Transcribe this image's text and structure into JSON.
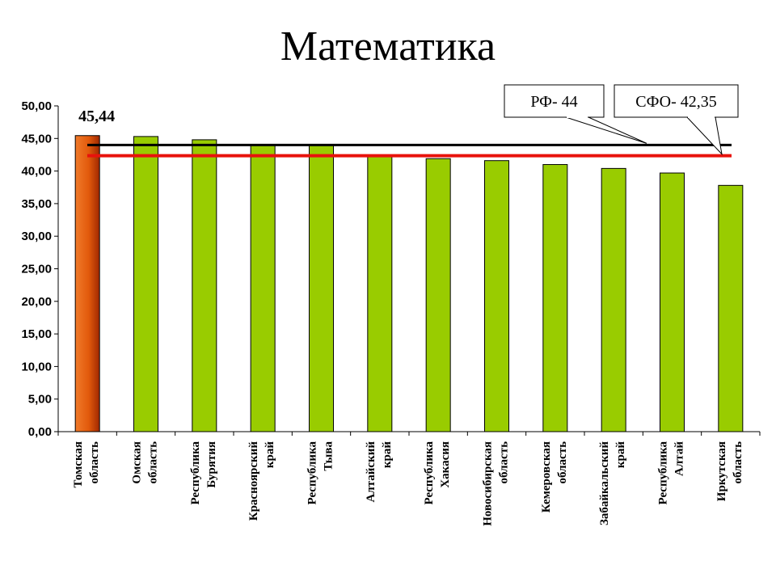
{
  "page": {
    "title": "Математика"
  },
  "chart_data": {
    "type": "bar",
    "title": "Математика",
    "categories": [
      [
        "Томская",
        "область"
      ],
      [
        "Омская",
        "область"
      ],
      [
        "Республика",
        "Бурятия"
      ],
      [
        "Красноярский",
        "край"
      ],
      [
        "Республика",
        "Тыва"
      ],
      [
        "Алтайский",
        "край"
      ],
      [
        "Республика",
        "Хакасия"
      ],
      [
        "Новосибирская",
        "область"
      ],
      [
        "Кемеровская",
        "область"
      ],
      [
        "Забайкальский",
        "край"
      ],
      [
        "Республика",
        "Алтай"
      ],
      [
        "Иркутская",
        "область"
      ]
    ],
    "values": [
      45.44,
      45.3,
      44.8,
      44.1,
      44.1,
      42.3,
      41.9,
      41.6,
      41.0,
      40.4,
      39.7,
      37.8
    ],
    "highlight_index": 0,
    "highlight_label": "45,44",
    "ylim": [
      0,
      50
    ],
    "y_ticks": [
      "0,00",
      "5,00",
      "10,00",
      "15,00",
      "20,00",
      "25,00",
      "30,00",
      "35,00",
      "40,00",
      "45,00",
      "50,00"
    ],
    "y_tick_values": [
      0,
      5,
      10,
      15,
      20,
      25,
      30,
      35,
      40,
      45,
      50
    ],
    "grid": false,
    "reference_lines": [
      {
        "label": "РФ- 44",
        "value": 44,
        "color": "#000000"
      },
      {
        "label": "СФО- 42,35",
        "value": 42.35,
        "color": "#e8120c"
      }
    ],
    "colors": {
      "bar": "#99cc00",
      "bar_highlight": "#e25a0c",
      "bar_highlight_dark": "#a02800"
    }
  }
}
